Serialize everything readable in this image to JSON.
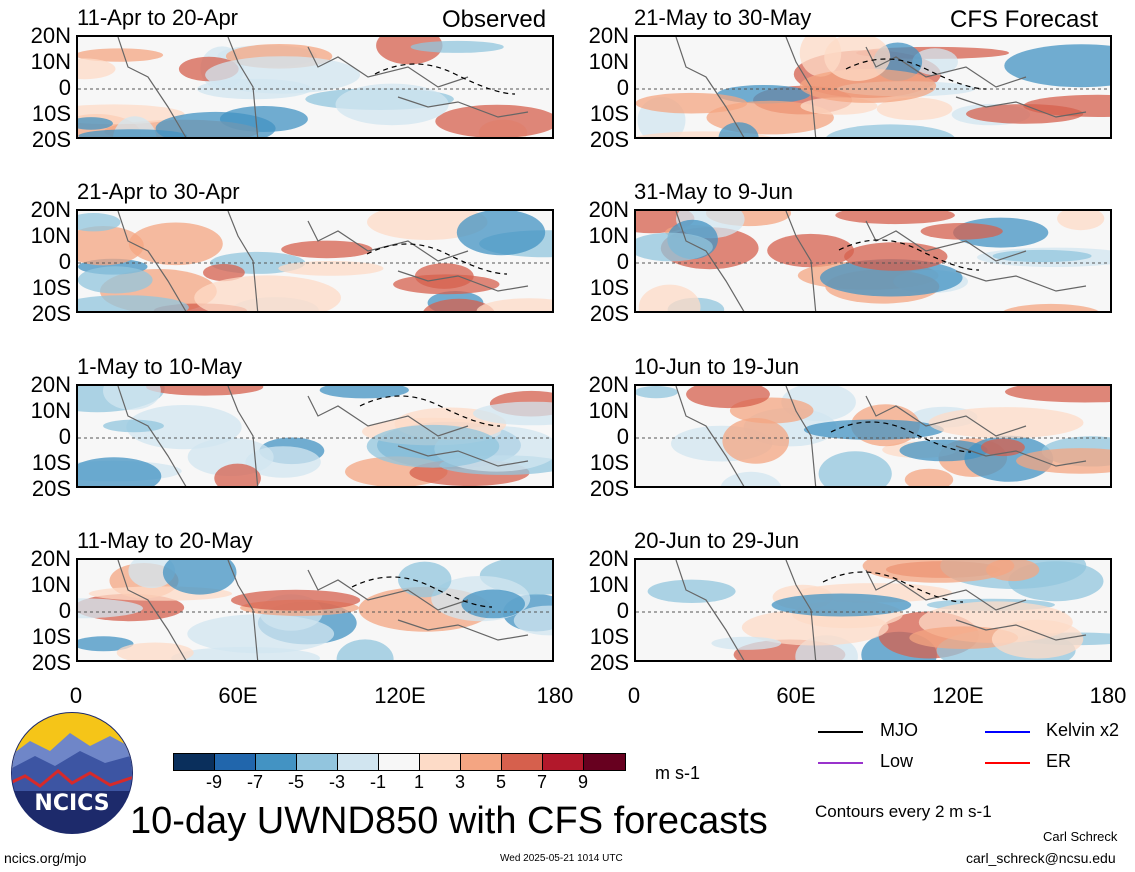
{
  "chart_data": {
    "type": "heatmap",
    "variable": "UWND850",
    "title": "10-day UWND850 with CFS forecasts",
    "units": "m s-1",
    "contour_note": "Contours every 2 m s-1",
    "lat_ticks": [
      "20N",
      "10N",
      "0",
      "10S",
      "20S"
    ],
    "lon_ticks": [
      "0",
      "60E",
      "120E",
      "180"
    ],
    "colorbar": {
      "levels": [
        "-9",
        "-7",
        "-5",
        "-3",
        "-1",
        "1",
        "3",
        "5",
        "7",
        "9"
      ],
      "colors": [
        "#0a2f5c",
        "#2166ac",
        "#4393c3",
        "#92c5de",
        "#d1e5f0",
        "#f7f7f7",
        "#fddbc7",
        "#f4a582",
        "#d6604d",
        "#b2182b",
        "#67001f"
      ]
    },
    "observed_label": "Observed",
    "forecast_label": "CFS Forecast",
    "panels_observed": [
      {
        "period": "11-Apr to 20-Apr"
      },
      {
        "period": "21-Apr to 30-Apr"
      },
      {
        "period": "1-May to 10-May"
      },
      {
        "period": "11-May to 20-May"
      }
    ],
    "panels_forecast": [
      {
        "period": "21-May to 30-May"
      },
      {
        "period": "31-May to 9-Jun"
      },
      {
        "period": "10-Jun to 19-Jun"
      },
      {
        "period": "20-Jun to 29-Jun"
      }
    ],
    "legend": [
      {
        "label": "MJO",
        "color": "#000000"
      },
      {
        "label": "Kelvin x2",
        "color": "#0000ff"
      },
      {
        "label": "Low",
        "color": "#9933cc"
      },
      {
        "label": "ER",
        "color": "#ff0000"
      }
    ]
  },
  "logo": {
    "text": "NCICS"
  },
  "footer": {
    "url": "ncics.org/mjo",
    "timestamp": "Wed 2025-05-21 1014 UTC",
    "author": "Carl Schreck",
    "email": "carl_schreck@ncsu.edu"
  }
}
